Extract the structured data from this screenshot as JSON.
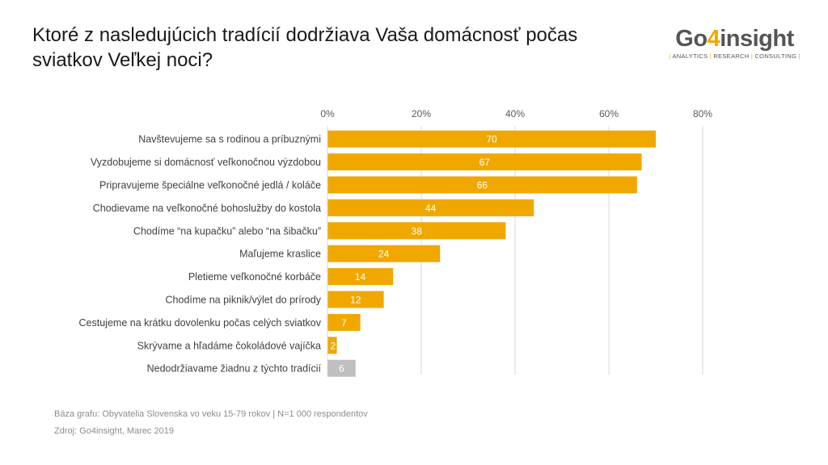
{
  "title": "Ktoré z nasledujúcich tradícií dodržiava Vaša domácnosť počas sviatkov Veľkej noci?",
  "logo": {
    "prefix": "Go",
    "accent": "4",
    "suffix": "insight",
    "tagline_parts": [
      "ANALYTICS",
      "RESEARCH",
      "CONSULTING"
    ]
  },
  "colors": {
    "bar": "#f0a800",
    "bar_muted": "#bfbfbf",
    "grid": "#d9d9d9"
  },
  "chart_data": {
    "type": "bar",
    "orientation": "horizontal",
    "categories": [
      "Navštevujeme sa s rodinou a príbuznými",
      "Vyzdobujeme si domácnosť veľkonočnou výzdobou",
      "Pripravujeme špeciálne veľkonočné jedlá / koláče",
      "Chodievame na veľkonočné bohoslužby do kostola",
      "Chodíme “na kupačku” alebo “na šibačku”",
      "Maľujeme kraslice",
      "Pletieme veľkonočné korbáče",
      "Chodíme na piknik/výlet do prírody",
      "Cestujeme na krátku dovolenku počas celých sviatkov",
      "Skrývame a hľadáme čokoládové vajíčka",
      "Nedodržiavame žiadnu z týchto tradícií"
    ],
    "values": [
      70,
      67,
      66,
      44,
      38,
      24,
      14,
      12,
      7,
      2,
      6
    ],
    "muted": [
      false,
      false,
      false,
      false,
      false,
      false,
      false,
      false,
      false,
      false,
      true
    ],
    "xlim": [
      0,
      80
    ],
    "ticks": [
      "0%",
      "20%",
      "40%",
      "60%",
      "80%"
    ],
    "grid": true,
    "legend": "none"
  },
  "footer": {
    "base": "Báza grafu: Obyvatelia Slovenska vo veku 15-79 rokov | N=1 000 respondentov",
    "source": "Zdroj: Go4insight, Marec 2019"
  }
}
